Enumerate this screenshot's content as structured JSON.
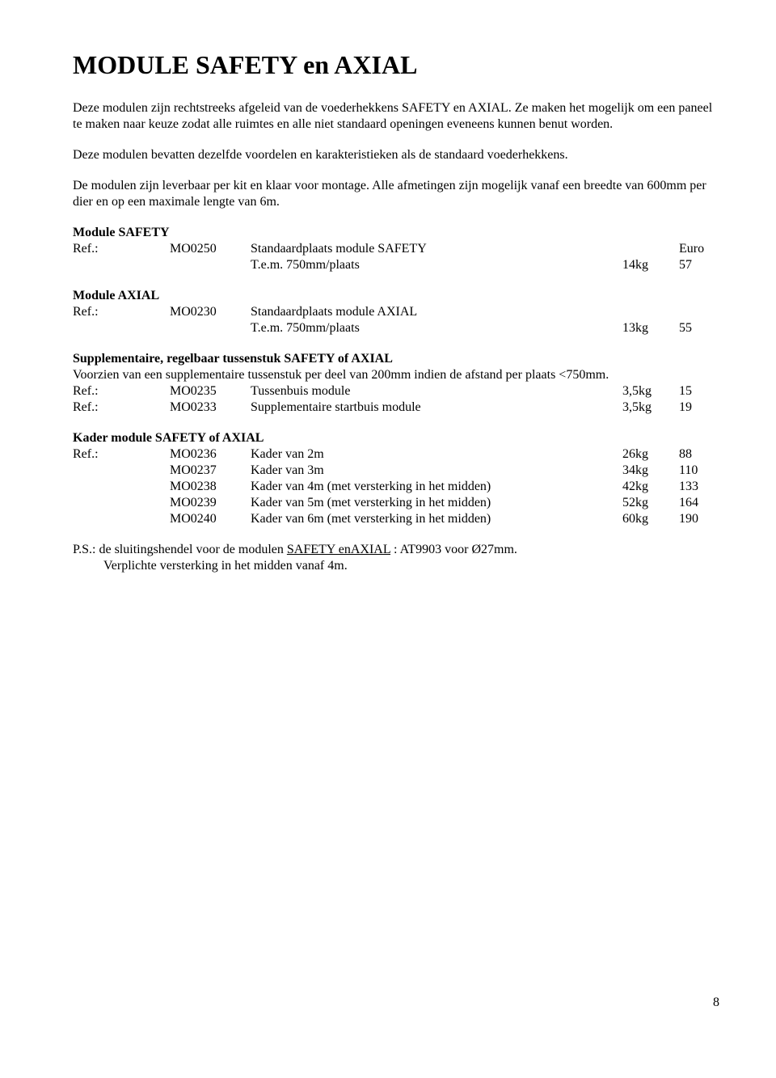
{
  "title": "MODULE SAFETY en AXIAL",
  "intro_p1": "Deze modulen zijn rechtstreeks afgeleid van de voederhekkens SAFETY en AXIAL. Ze maken het mogelijk om een paneel te maken naar keuze zodat alle ruimtes en alle niet standaard openingen eveneens kunnen benut worden.",
  "intro_p2": "Deze modulen bevatten dezelfde voordelen en karakteristieken als de standaard voederhekkens.",
  "intro_p3": "De modulen zijn leverbaar per kit en klaar voor montage. Alle afmetingen zijn mogelijk vanaf een breedte van 600mm per dier en op een maximale lengte van 6m.",
  "ref_label": "Ref.:",
  "euro_label": "Euro",
  "safety": {
    "heading": "Module SAFETY",
    "code": "MO0250",
    "desc1": "Standaardplaats module SAFETY",
    "desc2": "T.e.m. 750mm/plaats",
    "weight": "14kg",
    "price": "57"
  },
  "axial": {
    "heading": "Module AXIAL",
    "code": "MO0230",
    "desc1": "Standaardplaats module AXIAL",
    "desc2": "T.e.m. 750mm/plaats",
    "weight": "13kg",
    "price": "55"
  },
  "supp": {
    "heading": "Supplementaire, regelbaar tussenstuk SAFETY of AXIAL",
    "note": "Voorzien van een supplementaire tussenstuk per deel van 200mm indien de afstand per plaats <750mm.",
    "rows": [
      {
        "code": "MO0235",
        "desc": "Tussenbuis module",
        "weight": "3,5kg",
        "price": "15"
      },
      {
        "code": "MO0233",
        "desc": "Supplementaire startbuis module",
        "weight": "3,5kg",
        "price": "19"
      }
    ]
  },
  "kader": {
    "heading": "Kader  module SAFETY of AXIAL",
    "rows": [
      {
        "ref": "Ref.:",
        "code": "MO0236",
        "desc": "Kader van 2m",
        "weight": "26kg",
        "price": "88"
      },
      {
        "ref": "",
        "code": "MO0237",
        "desc": "Kader van 3m",
        "weight": "34kg",
        "price": "110"
      },
      {
        "ref": "",
        "code": "MO0238",
        "desc": "Kader van 4m (met versterking in het midden)",
        "weight": "42kg",
        "price": "133"
      },
      {
        "ref": "",
        "code": "MO0239",
        "desc": "Kader van 5m (met versterking in het midden)",
        "weight": "52kg",
        "price": "164"
      },
      {
        "ref": "",
        "code": "MO0240",
        "desc": "Kader van 6m (met versterking in het midden)",
        "weight": "60kg",
        "price": "190"
      }
    ]
  },
  "ps": {
    "line1a": "P.S.: de sluitingshendel voor de modulen ",
    "line1b": "SAFETY enAXIAL",
    "line1c": " : AT9903 voor Ø27mm.",
    "line2": "Verplichte versterking in het midden vanaf 4m."
  },
  "page_number": "8"
}
